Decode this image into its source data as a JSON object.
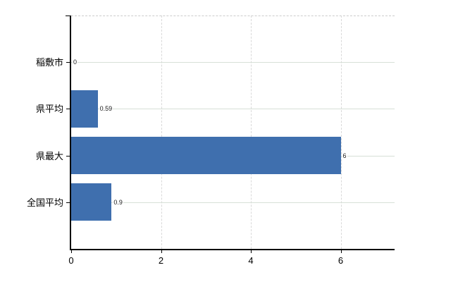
{
  "chart_data": {
    "type": "bar",
    "orientation": "horizontal",
    "title": "",
    "categories": [
      "稲敷市",
      "県平均",
      "県最大",
      "全国平均"
    ],
    "values": [
      0,
      0.59,
      6,
      0.9
    ],
    "value_labels": [
      "0",
      "0.59",
      "6",
      "0.9"
    ],
    "x_ticks": [
      0,
      2,
      4,
      6
    ],
    "x_tick_labels": [
      "0",
      "2",
      "4",
      "6"
    ],
    "xlim": [
      0,
      7.2
    ],
    "grid": true,
    "legend": false,
    "bar_color": "#3f6fae",
    "h_gridline_color": "#d7e0d7",
    "v_gridline_color": "#d9d9d9",
    "top_border_color": "#cccccc",
    "axis_color": "#000000",
    "text_color": "#000000"
  }
}
